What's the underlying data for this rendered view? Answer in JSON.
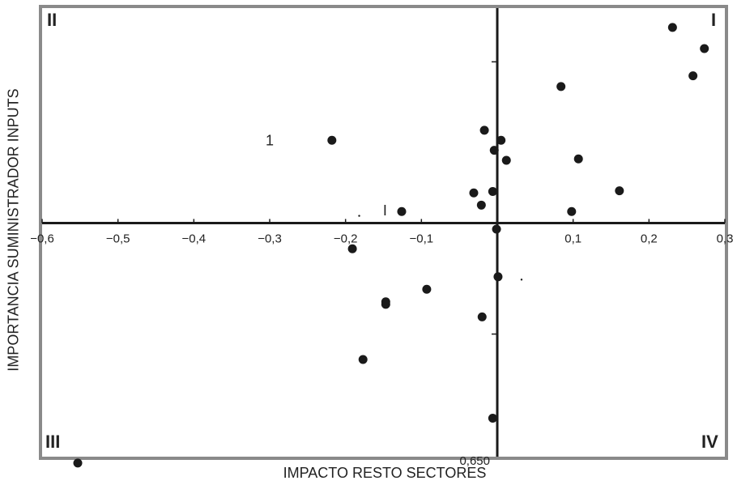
{
  "chart_data": {
    "type": "scatter",
    "title": "",
    "xlabel": "IMPACTO RESTO SECTORES",
    "ylabel": "IMPORTANCIA SUMINISTRADOR INPUTS",
    "xlim": [
      -0.6,
      0.3
    ],
    "ylim": [
      -0.65,
      0.6
    ],
    "x_ticks": [
      -0.6,
      -0.5,
      -0.4,
      -0.3,
      -0.2,
      -0.1,
      0.1,
      0.2,
      0.3
    ],
    "x_tick_labels": [
      "−0,6",
      "−0,5",
      "−0,4",
      "−0,3",
      "−0,2",
      "−0,1",
      "0,1",
      "0,2",
      "0,3"
    ],
    "quadrant_labels": {
      "q1": "I",
      "q2": "II",
      "q3": "III",
      "q4": "IV"
    },
    "axis_end_label": "0,650",
    "annotations": [
      "1",
      "I"
    ],
    "grid": false,
    "points": [
      {
        "x": 0.231,
        "y": 0.546
      },
      {
        "x": 0.273,
        "y": 0.487
      },
      {
        "x": 0.258,
        "y": 0.411
      },
      {
        "x": 0.084,
        "y": 0.381
      },
      {
        "x": 0.107,
        "y": 0.179
      },
      {
        "x": 0.161,
        "y": 0.09
      },
      {
        "x": -0.017,
        "y": 0.259
      },
      {
        "x": 0.005,
        "y": 0.231
      },
      {
        "x": -0.004,
        "y": 0.203
      },
      {
        "x": 0.012,
        "y": 0.175
      },
      {
        "x": -0.218,
        "y": 0.231
      },
      {
        "x": -0.031,
        "y": 0.084
      },
      {
        "x": -0.006,
        "y": 0.088
      },
      {
        "x": -0.021,
        "y": 0.05
      },
      {
        "x": -0.126,
        "y": 0.032
      },
      {
        "x": 0.098,
        "y": 0.032
      },
      {
        "x": -0.001,
        "y": -0.017
      },
      {
        "x": -0.191,
        "y": -0.072
      },
      {
        "x": 0.001,
        "y": -0.15
      },
      {
        "x": -0.093,
        "y": -0.185
      },
      {
        "x": -0.147,
        "y": -0.22
      },
      {
        "x": -0.147,
        "y": -0.227
      },
      {
        "x": -0.02,
        "y": -0.262
      },
      {
        "x": -0.177,
        "y": -0.381
      },
      {
        "x": -0.006,
        "y": -0.545
      },
      {
        "x": -0.553,
        "y": -0.67
      }
    ]
  }
}
